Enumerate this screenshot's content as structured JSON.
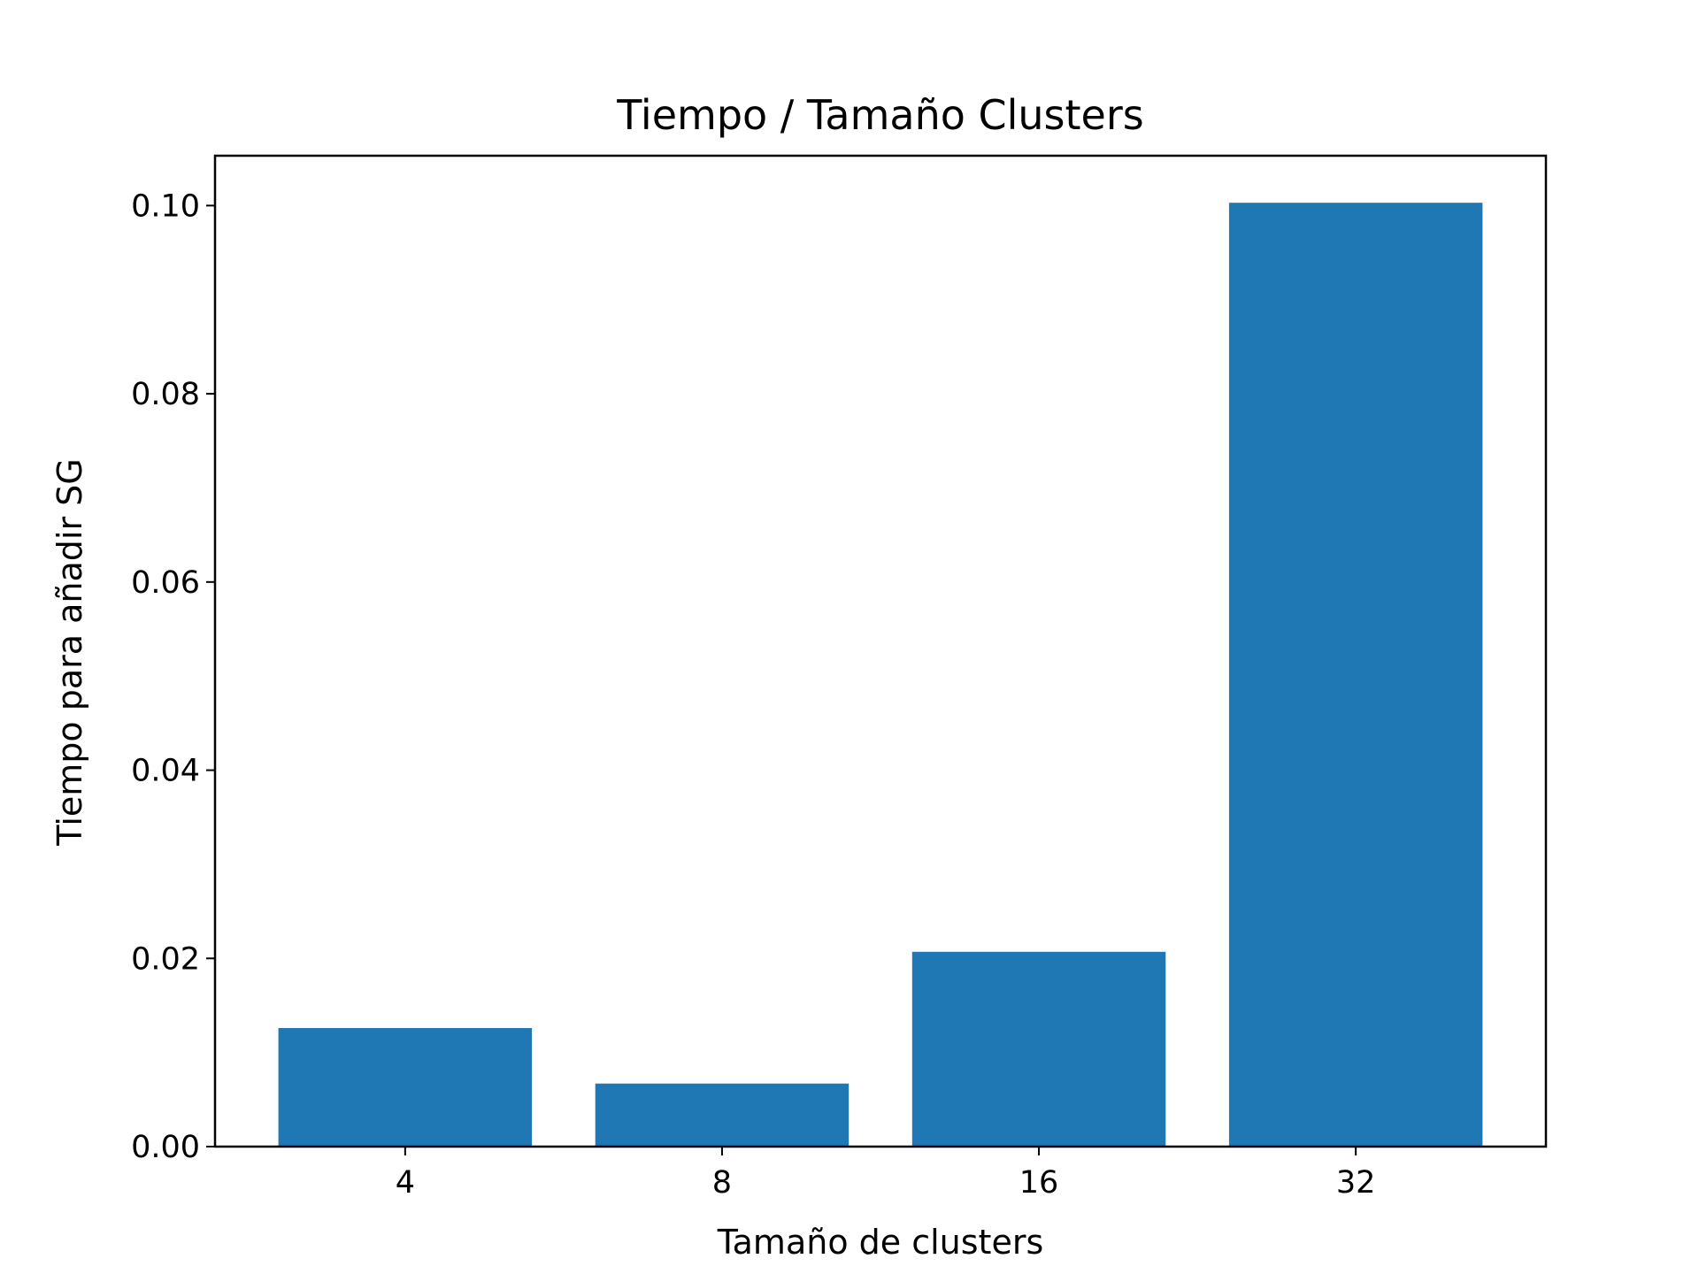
{
  "chart_data": {
    "type": "bar",
    "title": "Tiempo / Tamaño Clusters",
    "xlabel": "Tamaño de clusters",
    "ylabel": "Tiempo para añadir SG",
    "categories": [
      "4",
      "8",
      "16",
      "32"
    ],
    "values": [
      0.0126,
      0.0067,
      0.0207,
      0.1003
    ],
    "ylim": [
      0,
      0.1053
    ],
    "yticks": [
      0.0,
      0.02,
      0.04,
      0.06,
      0.08,
      0.1
    ],
    "ytick_labels": [
      "0.00",
      "0.02",
      "0.04",
      "0.06",
      "0.08",
      "0.10"
    ],
    "grid": false,
    "bar_color": "#1f77b4"
  }
}
